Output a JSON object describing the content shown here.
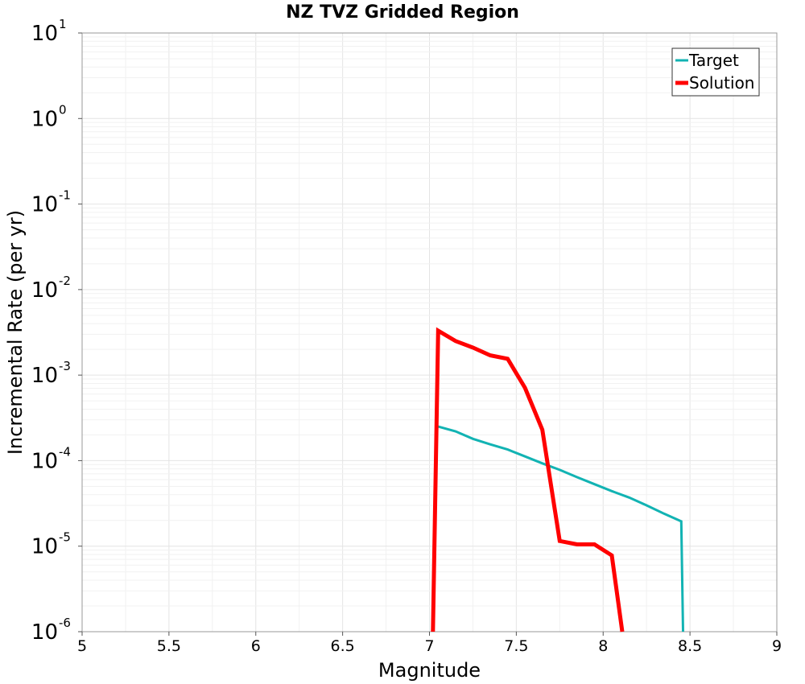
{
  "chart_data": {
    "type": "line",
    "title": "NZ TVZ Gridded Region",
    "xlabel": "Magnitude",
    "ylabel": "Incremental Rate (per yr)",
    "xlim": [
      5,
      9
    ],
    "ylim": [
      1e-06,
      10
    ],
    "yscale": "log",
    "grid": true,
    "legend_position": "top-right",
    "x_ticks": [
      "5",
      "5.5",
      "6",
      "6.5",
      "7",
      "7.5",
      "8",
      "8.5",
      "9"
    ],
    "y_ticks": [
      {
        "base": "10",
        "exp": "-6"
      },
      {
        "base": "10",
        "exp": "-5"
      },
      {
        "base": "10",
        "exp": "-4"
      },
      {
        "base": "10",
        "exp": "-3"
      },
      {
        "base": "10",
        "exp": "-2"
      },
      {
        "base": "10",
        "exp": "-1"
      },
      {
        "base": "10",
        "exp": "0"
      },
      {
        "base": "10",
        "exp": "1"
      }
    ],
    "series": [
      {
        "name": "Target",
        "color": "#12b3b3",
        "x": [
          7.05,
          7.15,
          7.25,
          7.35,
          7.45,
          7.55,
          7.65,
          7.75,
          7.85,
          7.95,
          8.05,
          8.15,
          8.25,
          8.35,
          8.45,
          8.46
        ],
        "values": [
          0.00025,
          0.00022,
          0.00018,
          0.000155,
          0.000135,
          0.000112,
          9.3e-05,
          7.8e-05,
          6.4e-05,
          5.3e-05,
          4.4e-05,
          3.7e-05,
          3e-05,
          2.4e-05,
          1.95e-05,
          1e-06
        ]
      },
      {
        "name": "Solution",
        "color": "#ff0000",
        "x": [
          7.02,
          7.05,
          7.15,
          7.25,
          7.35,
          7.45,
          7.55,
          7.65,
          7.75,
          7.85,
          7.95,
          8.05,
          8.11
        ],
        "values": [
          1e-06,
          0.0033,
          0.0025,
          0.0021,
          0.0017,
          0.00155,
          0.00071,
          0.00023,
          1.15e-05,
          1.05e-05,
          1.05e-05,
          7.8e-06,
          1e-06
        ]
      }
    ]
  }
}
